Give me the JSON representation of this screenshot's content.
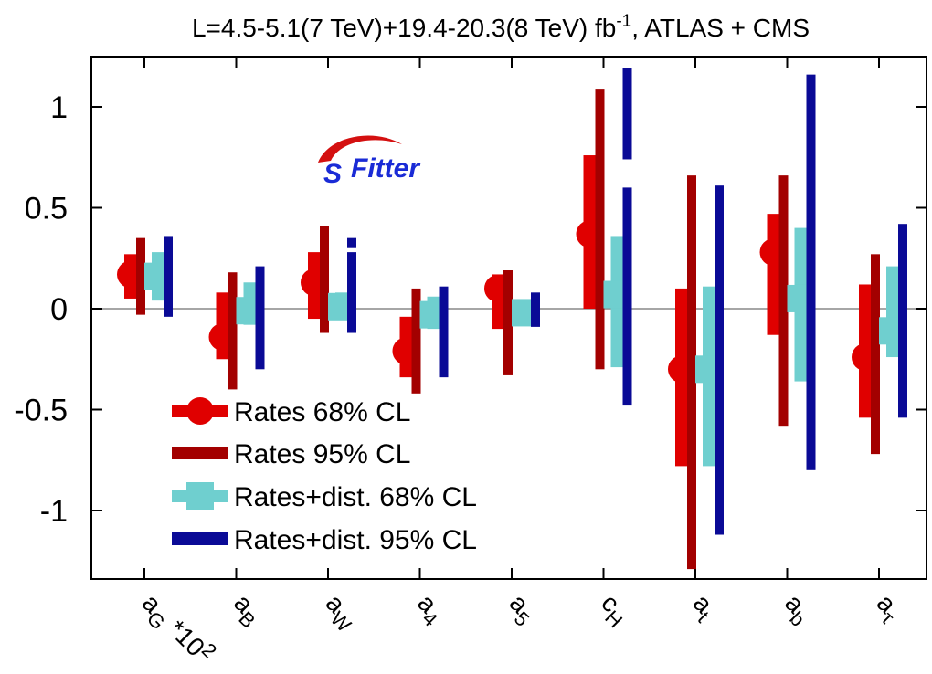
{
  "chart_data": {
    "type": "error-bar",
    "title": {
      "main": "L=4.5-5.1(7 TeV)+19.4-20.3(8 TeV) fb",
      "superscript": "-1",
      "suffix": ", ATLAS + CMS"
    },
    "logo": {
      "text": "Fitter",
      "initial": "S"
    },
    "ylim": [
      -1.35,
      1.25
    ],
    "yticks": [
      "1",
      "0.5",
      "0",
      "-0.5",
      "-1"
    ],
    "ytick_values": [
      1,
      0.5,
      0,
      -0.5,
      -1
    ],
    "categories": [
      {
        "base": "a",
        "sub": "G",
        "suffix": " *10",
        "sup": "2"
      },
      {
        "base": "a",
        "sub": "B",
        "suffix": "",
        "sup": ""
      },
      {
        "base": "a",
        "sub": "W",
        "suffix": "",
        "sup": ""
      },
      {
        "base": "a",
        "sub": "4",
        "suffix": "",
        "sup": ""
      },
      {
        "base": "a",
        "sub": "5",
        "suffix": "",
        "sup": ""
      },
      {
        "base": "c",
        "sub": "H",
        "suffix": "",
        "sup": ""
      },
      {
        "base": "a",
        "sub": "t",
        "suffix": "",
        "sup": ""
      },
      {
        "base": "a",
        "sub": "b",
        "suffix": "",
        "sup": ""
      },
      {
        "base": "a",
        "sub": "τ",
        "suffix": "",
        "sup": ""
      }
    ],
    "series": [
      {
        "name": "Rates 68% CL",
        "color": "#e00000",
        "marker": "circle",
        "central": [
          0.17,
          -0.14,
          0.13,
          -0.21,
          0.1,
          0.37,
          -0.3,
          0.28,
          -0.24
        ],
        "intervals": [
          [
            [
              0.05,
              0.27
            ]
          ],
          [
            [
              -0.25,
              0.08
            ]
          ],
          [
            [
              -0.05,
              0.28
            ]
          ],
          [
            [
              -0.34,
              -0.04
            ]
          ],
          [
            [
              -0.1,
              0.17
            ]
          ],
          [
            [
              0.0,
              0.76
            ]
          ],
          [
            [
              -0.78,
              0.1
            ]
          ],
          [
            [
              -0.13,
              0.47
            ]
          ],
          [
            [
              -0.54,
              0.12
            ]
          ]
        ]
      },
      {
        "name": "Rates 95% CL",
        "color": "#a30000",
        "marker": "none",
        "intervals": [
          [
            [
              -0.03,
              0.35
            ]
          ],
          [
            [
              -0.4,
              0.18
            ]
          ],
          [
            [
              -0.12,
              0.41
            ]
          ],
          [
            [
              -0.42,
              0.1
            ]
          ],
          [
            [
              -0.33,
              0.19
            ]
          ],
          [
            [
              -0.3,
              1.09
            ]
          ],
          [
            [
              -1.29,
              0.66
            ]
          ],
          [
            [
              -0.58,
              0.66
            ]
          ],
          [
            [
              -0.72,
              0.27
            ]
          ]
        ]
      },
      {
        "name": "Rates+dist. 68% CL",
        "color": "#6fcfcf",
        "marker": "square",
        "central": [
          0.16,
          -0.01,
          0.01,
          -0.03,
          -0.02,
          0.07,
          -0.3,
          0.05,
          -0.11
        ],
        "intervals": [
          [
            [
              0.04,
              0.28
            ]
          ],
          [
            [
              -0.08,
              0.13
            ]
          ],
          [
            [
              -0.05,
              0.08
            ]
          ],
          [
            [
              -0.1,
              0.06
            ]
          ],
          [
            [
              -0.08,
              0.04
            ]
          ],
          [
            [
              -0.29,
              0.36
            ]
          ],
          [
            [
              -0.78,
              0.11
            ]
          ],
          [
            [
              -0.36,
              0.4
            ]
          ],
          [
            [
              -0.24,
              0.21
            ]
          ]
        ]
      },
      {
        "name": "Rates+dist. 95% CL",
        "color": "#0a0a96",
        "marker": "none",
        "intervals": [
          [
            [
              -0.04,
              0.36
            ]
          ],
          [
            [
              -0.3,
              0.21
            ]
          ],
          [
            [
              -0.12,
              0.28
            ],
            [
              0.3,
              0.35
            ]
          ],
          [
            [
              -0.34,
              0.11
            ]
          ],
          [
            [
              -0.09,
              0.08
            ]
          ],
          [
            [
              -0.48,
              0.6
            ],
            [
              0.74,
              1.19
            ]
          ],
          [
            [
              -1.12,
              0.61
            ]
          ],
          [
            [
              -0.8,
              1.16
            ]
          ],
          [
            [
              -0.54,
              0.42
            ]
          ]
        ]
      }
    ],
    "legend": {
      "position": "lower-left"
    },
    "grid": false,
    "zero_line": true
  }
}
